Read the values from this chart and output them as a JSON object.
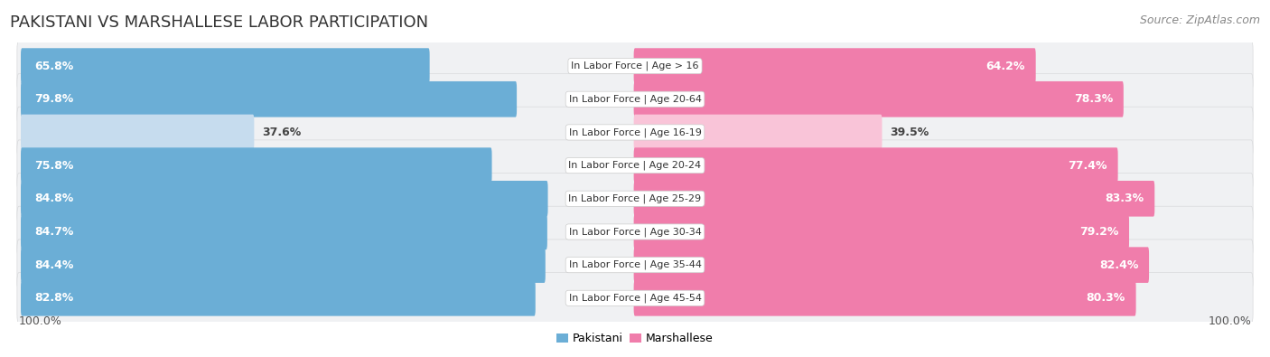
{
  "title": "PAKISTANI VS MARSHALLESE LABOR PARTICIPATION",
  "source": "Source: ZipAtlas.com",
  "categories": [
    "In Labor Force | Age > 16",
    "In Labor Force | Age 20-64",
    "In Labor Force | Age 16-19",
    "In Labor Force | Age 20-24",
    "In Labor Force | Age 25-29",
    "In Labor Force | Age 30-34",
    "In Labor Force | Age 35-44",
    "In Labor Force | Age 45-54"
  ],
  "pakistani_values": [
    65.8,
    79.8,
    37.6,
    75.8,
    84.8,
    84.7,
    84.4,
    82.8
  ],
  "marshallese_values": [
    64.2,
    78.3,
    39.5,
    77.4,
    83.3,
    79.2,
    82.4,
    80.3
  ],
  "pakistani_color": "#6baed6",
  "marshallese_color": "#f07dab",
  "pakistani_color_light": "#c6dcee",
  "marshallese_color_light": "#f9c4d8",
  "row_bg_color": "#f0f1f3",
  "row_border_color": "#d8d9db",
  "label_color_white": "#ffffff",
  "label_color_dark": "#444444",
  "axis_label": "100.0%",
  "max_val": 100.0,
  "figure_bg": "#ffffff",
  "title_fontsize": 13,
  "source_fontsize": 9,
  "bar_label_fontsize": 9,
  "cat_label_fontsize": 8,
  "legend_fontsize": 9,
  "light_rows": [
    2
  ]
}
